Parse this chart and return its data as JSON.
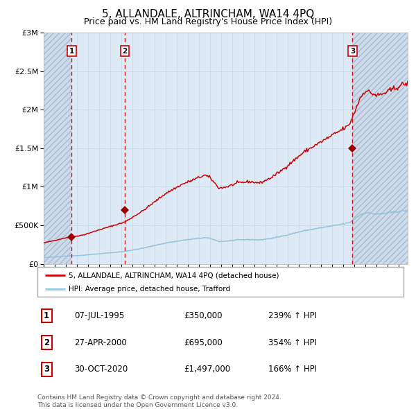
{
  "title": "5, ALLANDALE, ALTRINCHAM, WA14 4PQ",
  "subtitle": "Price paid vs. HM Land Registry's House Price Index (HPI)",
  "title_fontsize": 11,
  "subtitle_fontsize": 9,
  "hpi_line_color": "#8ec4e0",
  "price_line_color": "#cc0000",
  "sale_marker_color": "#990000",
  "dashed_line_color": "#cc0000",
  "bg_fill_color": "#ddeaf5",
  "bg_hatch_color": "#bbccdd",
  "sales": [
    {
      "label": "1",
      "date_num": 1995.52,
      "price": 350000
    },
    {
      "label": "2",
      "date_num": 2000.32,
      "price": 695000
    },
    {
      "label": "3",
      "date_num": 2020.83,
      "price": 1497000
    }
  ],
  "legend_entries": [
    "5, ALLANDALE, ALTRINCHAM, WA14 4PQ (detached house)",
    "HPI: Average price, detached house, Trafford"
  ],
  "table_rows": [
    {
      "num": "1",
      "date": "07-JUL-1995",
      "price": "£350,000",
      "change": "239% ↑ HPI"
    },
    {
      "num": "2",
      "date": "27-APR-2000",
      "price": "£695,000",
      "change": "354% ↑ HPI"
    },
    {
      "num": "3",
      "date": "30-OCT-2020",
      "price": "£1,497,000",
      "change": "166% ↑ HPI"
    }
  ],
  "footer": "Contains HM Land Registry data © Crown copyright and database right 2024.\nThis data is licensed under the Open Government Licence v3.0.",
  "ylim": [
    0,
    3000000
  ],
  "yticks": [
    0,
    500000,
    1000000,
    1500000,
    2000000,
    2500000,
    3000000
  ],
  "ytick_labels": [
    "£0",
    "£500K",
    "£1M",
    "£1.5M",
    "£2M",
    "£2.5M",
    "£3M"
  ],
  "xlim_start": 1993.0,
  "xlim_end": 2025.8
}
